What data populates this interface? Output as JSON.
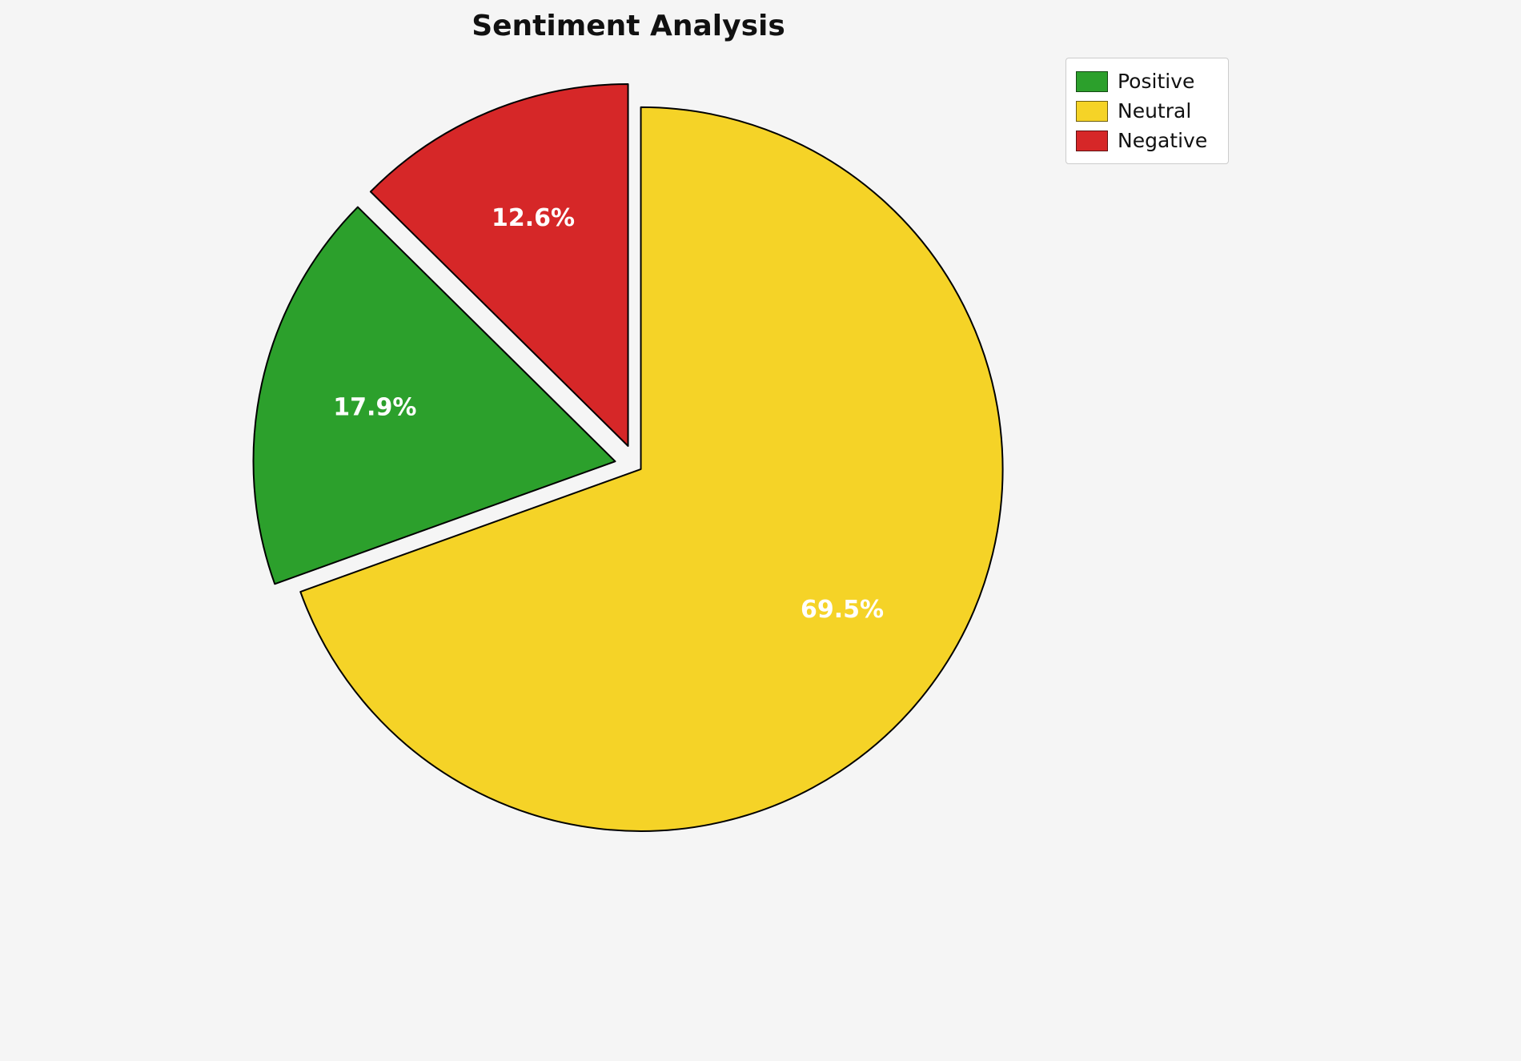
{
  "chart_data": {
    "type": "pie",
    "title": "Sentiment Analysis",
    "slices": [
      {
        "label": "Positive",
        "value": 17.9,
        "pct_label": "17.9%",
        "color": "#2ca02c",
        "explode": 0.06
      },
      {
        "label": "Neutral",
        "value": 69.5,
        "pct_label": "69.5%",
        "color": "#f5d327",
        "explode": 0.015
      },
      {
        "label": "Negative",
        "value": 12.6,
        "pct_label": "12.6%",
        "color": "#d62728",
        "explode": 0.06
      }
    ],
    "draw_order": [
      "Negative",
      "Positive",
      "Neutral"
    ],
    "start_angle": 90,
    "direction": "counterclockwise",
    "pct_label_color": "#ffffff",
    "edge_color": "#000000",
    "background": "#f5f5f5",
    "legend": {
      "position": "upper-right",
      "entries": [
        "Positive",
        "Neutral",
        "Negative"
      ]
    }
  }
}
